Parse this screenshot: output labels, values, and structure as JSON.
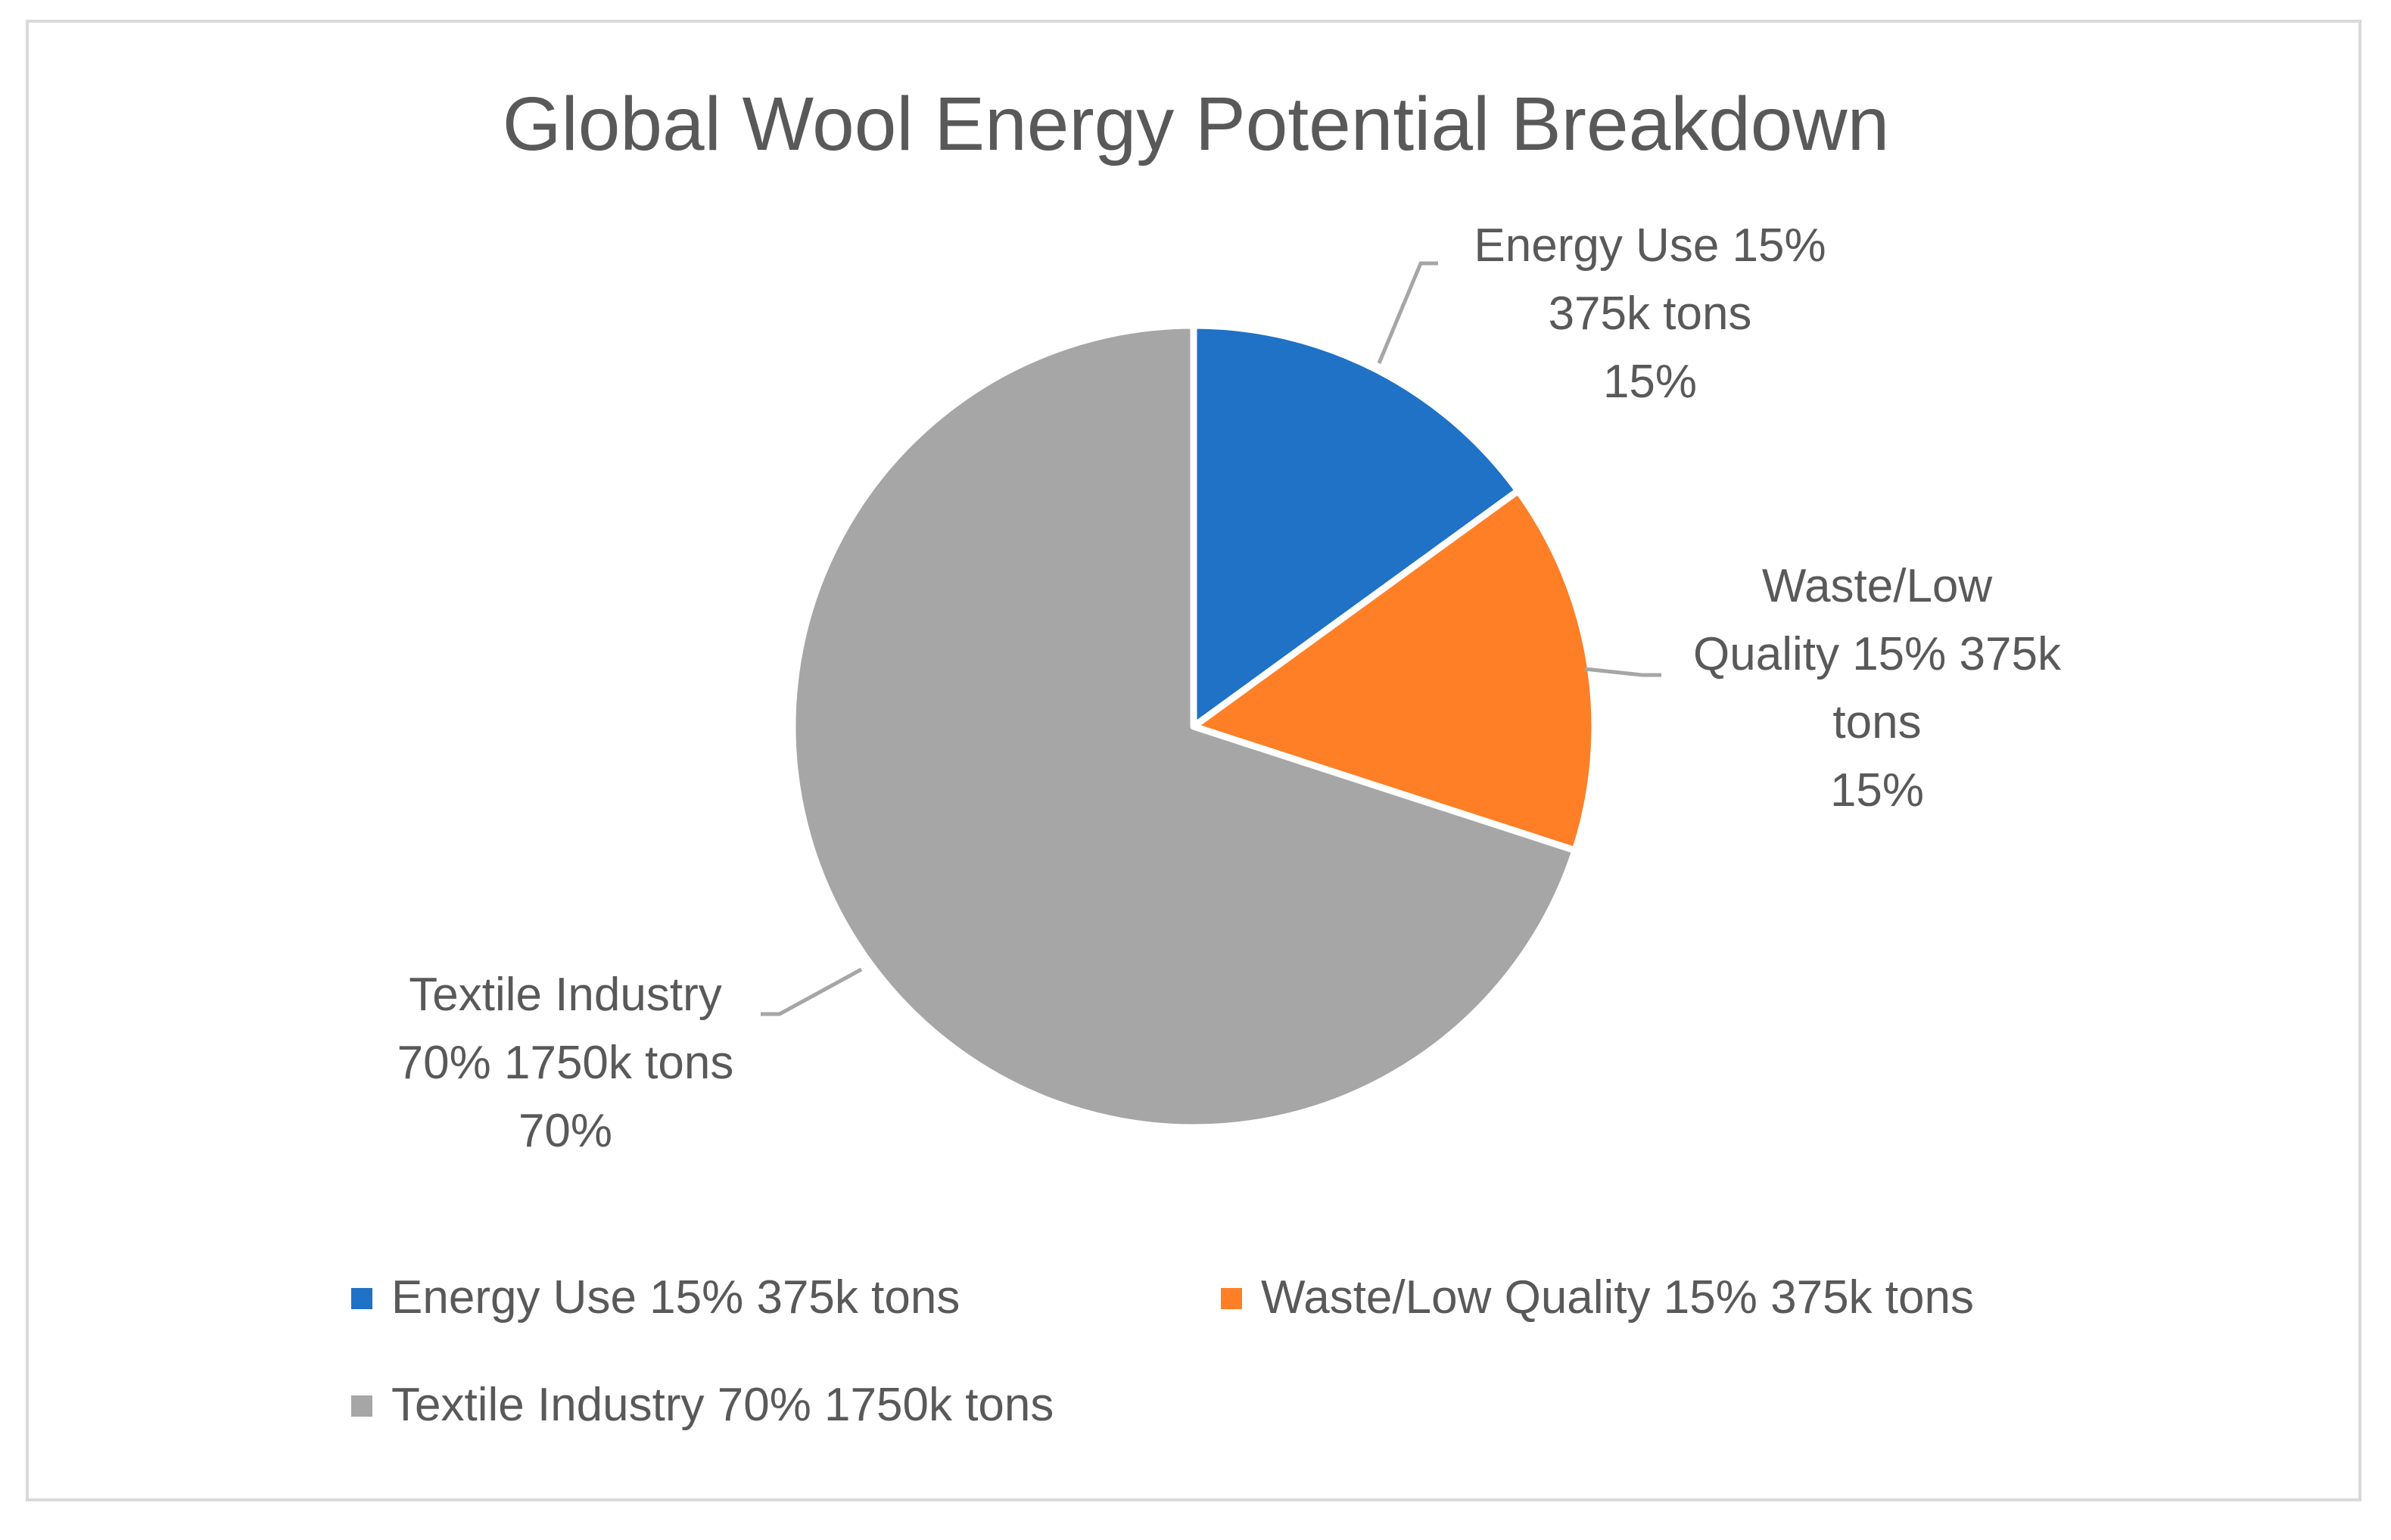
{
  "chart_data": {
    "type": "pie",
    "title": "Global Wool Energy Potential Breakdown",
    "categories": [
      "Energy Use 15% 375k tons",
      "Waste/Low Quality 15% 375k tons",
      "Textile Industry 70% 1750k tons"
    ],
    "values": [
      15,
      15,
      70
    ],
    "percent_labels": [
      "15%",
      "15%",
      "70%"
    ],
    "data_labels": [
      [
        "Energy Use 15%",
        "375k tons",
        "15%"
      ],
      [
        "Waste/Low",
        "Quality 15% 375k",
        "tons",
        "15%"
      ],
      [
        "Textile Industry",
        "70% 1750k tons",
        "70%"
      ]
    ],
    "colors": [
      "#1f72c6",
      "#ff7f27",
      "#a6a6a6"
    ],
    "legend_position": "bottom"
  }
}
